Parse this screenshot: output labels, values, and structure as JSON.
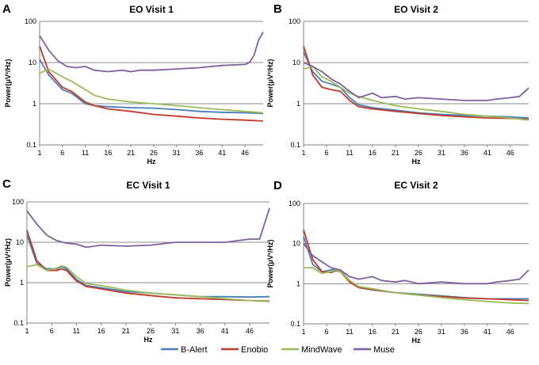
{
  "figure": {
    "legend": {
      "entries": [
        {
          "label": "B-Alert",
          "color": "#4a7ebb"
        },
        {
          "label": "Enobio",
          "color": "#c0392b"
        },
        {
          "label": "MindWave",
          "color": "#9bbb59"
        },
        {
          "label": "Muse",
          "color": "#7d60a0"
        }
      ]
    }
  },
  "chart_data": [
    {
      "type": "line",
      "panel_label": "A",
      "title": "EO Visit 1",
      "xlabel": "Hz",
      "ylabel": "Power(μV²/Hz)",
      "yscale": "log",
      "ylim": [
        0.1,
        100
      ],
      "xlim": [
        1,
        50
      ],
      "xticks": [
        1,
        6,
        11,
        16,
        21,
        26,
        31,
        36,
        41,
        46
      ],
      "yticks": [
        0.1,
        1,
        10,
        100
      ],
      "ytick_labels": [
        "0.1",
        "1",
        "10",
        "100"
      ],
      "grid": "horizontal",
      "series": [
        {
          "name": "B-Alert",
          "color": "#4a7ebb",
          "x": [
            1,
            3,
            6,
            8,
            11,
            13,
            16,
            21,
            26,
            31,
            36,
            41,
            46,
            50
          ],
          "values": [
            12,
            5,
            2.2,
            1.8,
            1.0,
            0.9,
            0.85,
            0.8,
            0.78,
            0.72,
            0.65,
            0.62,
            0.6,
            0.58
          ]
        },
        {
          "name": "Enobio",
          "color": "#c0392b",
          "x": [
            1,
            3,
            6,
            8,
            11,
            13,
            16,
            21,
            26,
            31,
            36,
            41,
            46,
            50
          ],
          "values": [
            25,
            6,
            2.5,
            2.0,
            1.1,
            0.9,
            0.75,
            0.65,
            0.55,
            0.5,
            0.45,
            0.42,
            0.4,
            0.38
          ]
        },
        {
          "name": "MindWave",
          "color": "#9bbb59",
          "x": [
            1,
            3,
            6,
            8,
            11,
            13,
            16,
            21,
            26,
            31,
            36,
            41,
            46,
            50
          ],
          "values": [
            5.5,
            7,
            4.5,
            3.5,
            2.2,
            1.6,
            1.3,
            1.1,
            1.0,
            0.9,
            0.8,
            0.72,
            0.65,
            0.6
          ]
        },
        {
          "name": "Muse",
          "color": "#7d60a0",
          "x": [
            1,
            3,
            5,
            7,
            9,
            11,
            13,
            16,
            19,
            21,
            23,
            26,
            31,
            36,
            41,
            46,
            47,
            48,
            49,
            50
          ],
          "values": [
            45,
            20,
            11,
            8,
            7.5,
            8,
            6.5,
            6,
            6.5,
            6,
            6.5,
            6.5,
            7,
            7.5,
            8.5,
            9,
            10,
            15,
            35,
            55
          ]
        }
      ]
    },
    {
      "type": "line",
      "panel_label": "B",
      "title": "EO Visit 2",
      "xlabel": "Hz",
      "ylabel": "Power(μV²/Hz)",
      "yscale": "log",
      "ylim": [
        0.1,
        100
      ],
      "xlim": [
        1,
        50
      ],
      "xticks": [
        1,
        6,
        11,
        16,
        21,
        26,
        31,
        36,
        41,
        46
      ],
      "yticks": [
        0.1,
        1,
        10,
        100
      ],
      "ytick_labels": [
        "0.1",
        "1",
        "10",
        "100"
      ],
      "grid": "horizontal",
      "series": [
        {
          "name": "B-Alert",
          "color": "#4a7ebb",
          "x": [
            1,
            3,
            5,
            7,
            9,
            11,
            13,
            16,
            21,
            26,
            31,
            36,
            41,
            46,
            50
          ],
          "values": [
            18,
            6,
            3.5,
            3,
            2.5,
            1.4,
            0.95,
            0.8,
            0.7,
            0.6,
            0.55,
            0.52,
            0.5,
            0.48,
            0.45
          ]
        },
        {
          "name": "Enobio",
          "color": "#c0392b",
          "x": [
            1,
            3,
            5,
            7,
            9,
            11,
            13,
            16,
            21,
            26,
            31,
            36,
            41,
            46,
            50
          ],
          "values": [
            25,
            5,
            2.5,
            2.2,
            2,
            1.2,
            0.85,
            0.75,
            0.65,
            0.58,
            0.52,
            0.48,
            0.45,
            0.44,
            0.42
          ]
        },
        {
          "name": "MindWave",
          "color": "#9bbb59",
          "x": [
            1,
            3,
            5,
            7,
            9,
            11,
            13,
            16,
            21,
            26,
            31,
            36,
            41,
            46,
            50
          ],
          "values": [
            7,
            8,
            4.5,
            3.5,
            2.5,
            1.8,
            1.5,
            1.2,
            0.9,
            0.75,
            0.65,
            0.55,
            0.5,
            0.45,
            0.4
          ]
        },
        {
          "name": "Muse",
          "color": "#7d60a0",
          "x": [
            1,
            3,
            5,
            7,
            9,
            11,
            13,
            16,
            18,
            21,
            23,
            26,
            31,
            36,
            41,
            43,
            46,
            48,
            50
          ],
          "values": [
            10,
            8,
            6,
            4,
            3,
            2,
            1.4,
            1.8,
            1.4,
            1.5,
            1.3,
            1.4,
            1.3,
            1.2,
            1.2,
            1.3,
            1.4,
            1.5,
            2.4
          ]
        }
      ]
    },
    {
      "type": "line",
      "panel_label": "C",
      "title": "EC Visit 1",
      "xlabel": "Hz",
      "ylabel": "Power(μV²/Hz)",
      "yscale": "log",
      "ylim": [
        0.1,
        100
      ],
      "xlim": [
        1,
        50
      ],
      "xticks": [
        1,
        6,
        11,
        16,
        21,
        26,
        31,
        36,
        41,
        46
      ],
      "yticks": [
        0.1,
        1,
        10,
        100
      ],
      "ytick_labels": [
        "0.1",
        "1",
        "10",
        "100"
      ],
      "grid": "horizontal",
      "series": [
        {
          "name": "B-Alert",
          "color": "#4a7ebb",
          "x": [
            1,
            3,
            5,
            7,
            8,
            9,
            11,
            13,
            16,
            21,
            26,
            31,
            36,
            41,
            46,
            50
          ],
          "values": [
            15,
            3,
            2.2,
            2.2,
            2.5,
            2.2,
            1.2,
            0.85,
            0.75,
            0.6,
            0.55,
            0.5,
            0.45,
            0.45,
            0.44,
            0.45
          ]
        },
        {
          "name": "Enobio",
          "color": "#c0392b",
          "x": [
            1,
            3,
            5,
            7,
            8,
            9,
            11,
            13,
            16,
            21,
            26,
            31,
            36,
            41,
            46,
            50
          ],
          "values": [
            20,
            3.5,
            2.0,
            2.0,
            2.2,
            2.0,
            1.1,
            0.8,
            0.7,
            0.55,
            0.48,
            0.42,
            0.4,
            0.38,
            0.36,
            0.35
          ]
        },
        {
          "name": "MindWave",
          "color": "#9bbb59",
          "x": [
            1,
            3,
            5,
            7,
            8,
            9,
            11,
            13,
            16,
            21,
            26,
            31,
            36,
            41,
            46,
            50
          ],
          "values": [
            2.5,
            2.8,
            2.0,
            2.3,
            2.6,
            2.4,
            1.4,
            0.95,
            0.85,
            0.65,
            0.55,
            0.5,
            0.45,
            0.4,
            0.36,
            0.34
          ]
        },
        {
          "name": "Muse",
          "color": "#7d60a0",
          "x": [
            1,
            3,
            5,
            7,
            9,
            11,
            13,
            16,
            21,
            26,
            31,
            36,
            41,
            46,
            48,
            50
          ],
          "values": [
            60,
            28,
            15,
            11,
            9.5,
            9,
            7.5,
            8.5,
            8,
            8.5,
            10,
            10,
            10,
            12,
            12,
            70
          ]
        }
      ]
    },
    {
      "type": "line",
      "panel_label": "D",
      "title": "EC Visit 2",
      "xlabel": "Hz",
      "ylabel": "Power(μV²/Hz)",
      "yscale": "log",
      "ylim": [
        0.1,
        100
      ],
      "xlim": [
        1,
        50
      ],
      "xticks": [
        1,
        6,
        11,
        16,
        21,
        26,
        31,
        36,
        41,
        46
      ],
      "yticks": [
        0.1,
        1,
        10,
        100
      ],
      "ytick_labels": [
        "0.1",
        "1",
        "10",
        "100"
      ],
      "grid": "horizontal",
      "series": [
        {
          "name": "B-Alert",
          "color": "#4a7ebb",
          "x": [
            1,
            3,
            5,
            7,
            8,
            9,
            11,
            13,
            16,
            21,
            26,
            31,
            36,
            41,
            46,
            50
          ],
          "values": [
            15,
            3,
            2.0,
            2.2,
            2.3,
            2.1,
            1.2,
            0.8,
            0.7,
            0.6,
            0.55,
            0.5,
            0.45,
            0.42,
            0.42,
            0.42
          ]
        },
        {
          "name": "Enobio",
          "color": "#c0392b",
          "x": [
            1,
            3,
            5,
            7,
            8,
            9,
            11,
            13,
            16,
            21,
            26,
            31,
            36,
            41,
            46,
            50
          ],
          "values": [
            22,
            4,
            2.0,
            1.9,
            2.1,
            2.0,
            1.1,
            0.8,
            0.72,
            0.6,
            0.52,
            0.48,
            0.44,
            0.42,
            0.4,
            0.38
          ]
        },
        {
          "name": "MindWave",
          "color": "#9bbb59",
          "x": [
            1,
            3,
            5,
            7,
            8,
            9,
            11,
            13,
            16,
            21,
            26,
            31,
            36,
            41,
            46,
            50
          ],
          "values": [
            2.5,
            2.5,
            1.8,
            2.0,
            2.2,
            2.0,
            1.2,
            0.85,
            0.75,
            0.6,
            0.52,
            0.45,
            0.4,
            0.36,
            0.33,
            0.32
          ]
        },
        {
          "name": "Muse",
          "color": "#7d60a0",
          "x": [
            1,
            3,
            5,
            7,
            9,
            11,
            13,
            16,
            18,
            21,
            23,
            26,
            31,
            36,
            41,
            43,
            46,
            48,
            50
          ],
          "values": [
            10,
            5,
            3.5,
            2.5,
            2.2,
            1.5,
            1.3,
            1.5,
            1.2,
            1.1,
            1.2,
            1.0,
            1.1,
            1.0,
            1.0,
            1.1,
            1.2,
            1.3,
            2.2
          ]
        }
      ]
    }
  ]
}
